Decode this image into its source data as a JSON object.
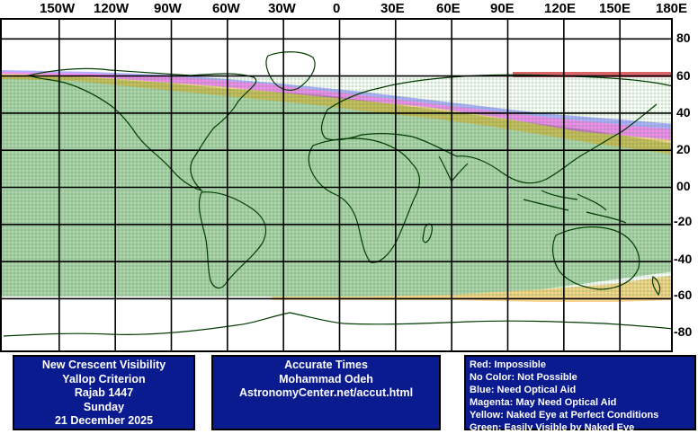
{
  "axes": {
    "longitude_labels": [
      "150W",
      "120W",
      "90W",
      "60W",
      "30W",
      "0",
      "30E",
      "60E",
      "90E",
      "120E",
      "150E",
      "180E"
    ],
    "latitude_labels": [
      "80",
      "60",
      "40",
      "20",
      "00",
      "-20",
      "-40",
      "-60",
      "-80"
    ]
  },
  "map": {
    "colors": {
      "green": "#2e8b2e",
      "yellow": "#e8a000",
      "magenta": "#e000e0",
      "blue": "#1a1aff",
      "red": "#c00000",
      "coast": "#003c00"
    }
  },
  "info": {
    "title_box": [
      "New Crescent Visibility",
      "Yallop Criterion",
      "Rajab 1447",
      "Sunday",
      "21 December 2025"
    ],
    "credit_box": [
      "Accurate Times",
      "Mohammad Odeh",
      "AstronomyCenter.net/accut.html"
    ],
    "legend_box": [
      "Red: Impossible",
      "No Color: Not Possible",
      "Blue: Need Optical Aid",
      "Magenta: May Need Optical Aid",
      "Yellow: Naked Eye at Perfect Conditions",
      "Green: Easily Visible by Naked Eye"
    ]
  }
}
